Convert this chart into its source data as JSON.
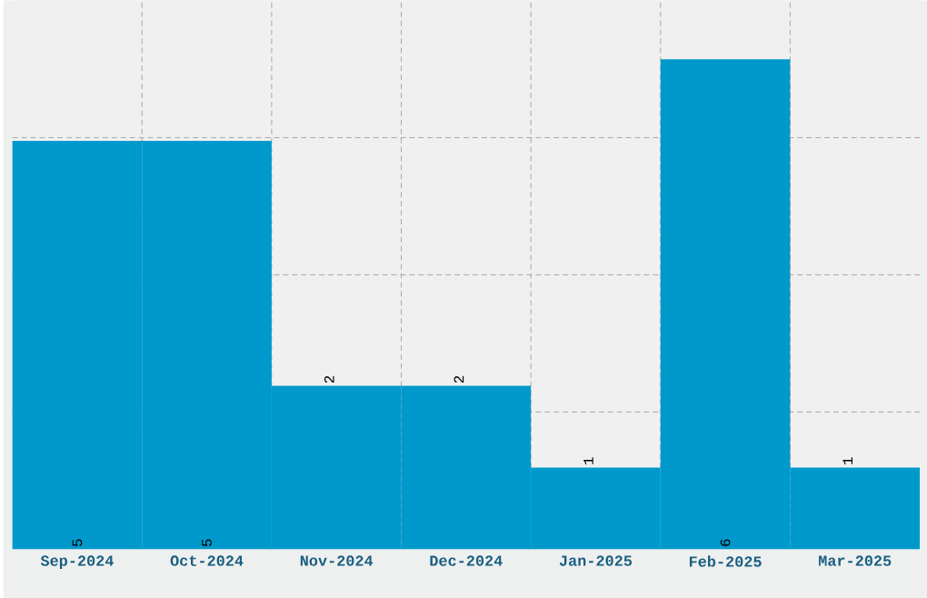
{
  "chart_data": {
    "type": "bar",
    "categories": [
      "Sep-2024",
      "Oct-2024",
      "Nov-2024",
      "Dec-2024",
      "Jan-2025",
      "Feb-2025",
      "Mar-2025"
    ],
    "values": [
      5,
      5,
      2,
      2,
      1,
      6,
      1
    ],
    "color": "#0099cc",
    "ylim": [
      0,
      6.72
    ],
    "yticks": [
      {
        "value": 1.68,
        "label": null
      },
      {
        "value": 3.36,
        "label": null
      },
      {
        "value": 5.04,
        "label": null
      }
    ],
    "grid": true,
    "tick_labels": "x",
    "data_labels": true
  }
}
